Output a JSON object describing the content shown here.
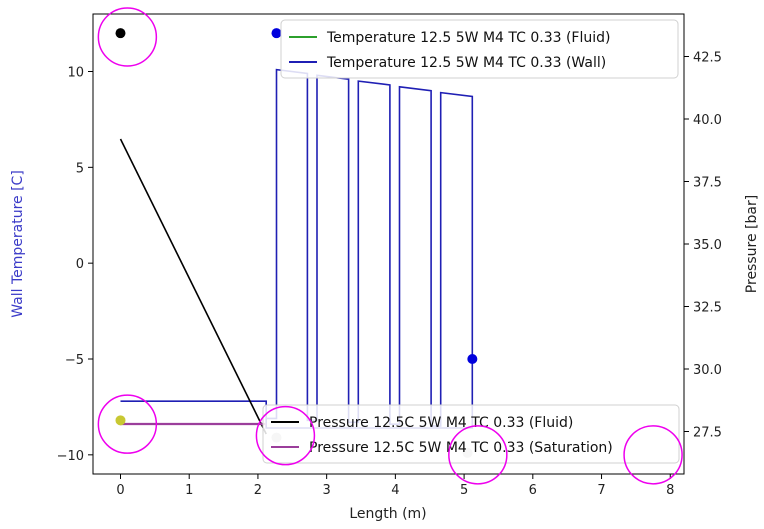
{
  "chart_data": {
    "type": "line",
    "xlabel": "Length (m)",
    "ylabel_left": "Wall Temperature [C]",
    "ylabel_right": "Pressure [bar]",
    "xlim": [
      -0.4,
      8.2
    ],
    "ylim_left": [
      -11,
      13
    ],
    "ylim_right": [
      25.8,
      44.2
    ],
    "x_ticks": [
      0,
      1,
      2,
      3,
      4,
      5,
      6,
      7,
      8
    ],
    "y_ticks_left": [
      -10,
      -5,
      0,
      5,
      10
    ],
    "y_ticks_right": [
      "27.5",
      "30.0",
      "32.5",
      "35.0",
      "37.5",
      "40.0",
      "42.5"
    ],
    "grid": false,
    "colors": {
      "fluid_temp": "#2ca02c",
      "wall_temp": "#1f1fb4",
      "fluid_pressure": "#000000",
      "saturation_pressure": "#9b3e9b",
      "left_axis_label": "#3b3bc8",
      "highlight_circle": "#ee00ee",
      "marker_blue": "#0000dd",
      "marker_black": "#000000",
      "marker_yellow": "#c8c832",
      "marker_gray": "#c0c0c0"
    },
    "legend_top": [
      {
        "label": "Temperature 12.5 5W M4 TC 0.33 (Fluid)",
        "color": "#2ca02c"
      },
      {
        "label": "Temperature 12.5 5W M4 TC 0.33 (Wall)",
        "color": "#1f1fb4"
      }
    ],
    "legend_bottom": [
      {
        "label": "Pressure 12.5C 5W M4 TC 0.33 (Fluid)",
        "color": "#000000"
      },
      {
        "label": "Pressure 12.5C 5W M4 TC 0.33 (Saturation)",
        "color": "#9b3e9b"
      }
    ],
    "series": [
      {
        "name": "Temperature 12.5 5W M4 TC 0.33 (Wall)",
        "axis": "left",
        "x": [
          0,
          2.12,
          2.12,
          2.18,
          2.18,
          2.27,
          2.27,
          2.72,
          2.72,
          2.78,
          2.78,
          2.86,
          2.86,
          3.32,
          3.32,
          3.38,
          3.38,
          3.46,
          3.46,
          3.92,
          3.92,
          3.98,
          3.98,
          4.06,
          4.06,
          4.52,
          4.52,
          4.58,
          4.58,
          4.66,
          4.66,
          5.12,
          5.12,
          2.12,
          2.12,
          0
        ],
        "y": [
          -7.2,
          -7.2,
          -8.1,
          -8.1,
          -8.1,
          -8.1,
          10.1,
          9.9,
          -8.2,
          -8.2,
          -8.2,
          -8.2,
          9.8,
          9.6,
          -8.3,
          -8.3,
          -8.3,
          -8.3,
          9.5,
          9.3,
          -8.4,
          -8.4,
          -8.4,
          -8.4,
          9.2,
          9.0,
          -8.5,
          -8.5,
          -8.5,
          -8.5,
          8.9,
          8.7,
          -8.6,
          -8.6,
          -7.2,
          -7.2
        ]
      },
      {
        "name": "Pressure 12.5C 5W M4 TC 0.33 (Fluid)",
        "axis": "right",
        "x": [
          0,
          2.12
        ],
        "y": [
          39.2,
          27.4
        ]
      },
      {
        "name": "Pressure 12.5C 5W M4 TC 0.33 (Saturation)",
        "axis": "right",
        "x": [
          0,
          2.12
        ],
        "y": [
          27.8,
          27.8
        ]
      }
    ],
    "markers": [
      {
        "x": 0,
        "y": 12.0,
        "axis": "left",
        "color": "#000000"
      },
      {
        "x": 2.27,
        "y": 12.0,
        "axis": "left",
        "color": "#0000dd"
      },
      {
        "x": 5.12,
        "y": -5.0,
        "axis": "left",
        "color": "#0000dd"
      },
      {
        "x": 0,
        "y": -8.2,
        "axis": "left",
        "color": "#c8c832"
      },
      {
        "x": 2.27,
        "y": -9.1,
        "axis": "left",
        "color": "#c0c0c0"
      },
      {
        "x": 5.05,
        "y": -9.9,
        "axis": "left",
        "color": "#c0c0c0"
      }
    ],
    "highlight_circles": [
      {
        "x": 0.1,
        "y": 11.8,
        "axis": "left"
      },
      {
        "x": 0.1,
        "y": -8.4,
        "axis": "left"
      },
      {
        "x": 2.4,
        "y": -9.0,
        "axis": "left"
      },
      {
        "x": 5.2,
        "y": -10.0,
        "axis": "left"
      },
      {
        "x": 7.75,
        "y": -10.0,
        "axis": "left"
      }
    ]
  }
}
